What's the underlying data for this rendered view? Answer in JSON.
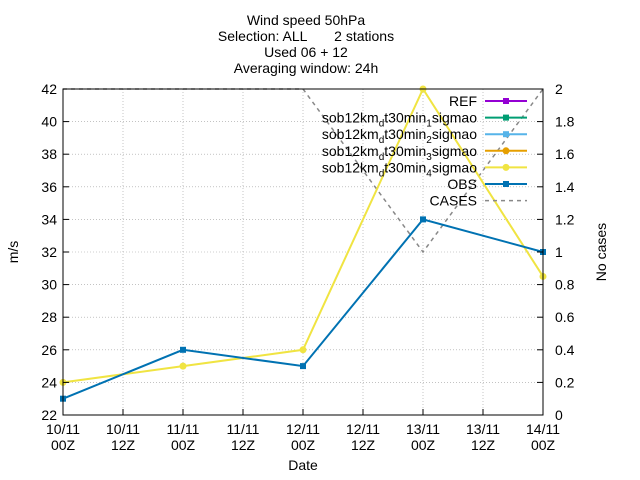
{
  "title_lines": [
    "Wind speed 50hPa",
    "Selection: ALL       2 stations",
    "Used 06 + 12",
    "Averaging window: 24h"
  ],
  "chart_data": {
    "type": "line",
    "xlabel": "Date",
    "ylabel": "m/s",
    "y2label": "No cases",
    "ylim": [
      22,
      42
    ],
    "y2lim": [
      0,
      2
    ],
    "x_ticks": [
      [
        "10/11",
        "00Z"
      ],
      [
        "10/11",
        "12Z"
      ],
      [
        "11/11",
        "00Z"
      ],
      [
        "11/11",
        "12Z"
      ],
      [
        "12/11",
        "00Z"
      ],
      [
        "12/11",
        "12Z"
      ],
      [
        "13/11",
        "00Z"
      ],
      [
        "13/11",
        "12Z"
      ],
      [
        "14/11",
        "00Z"
      ]
    ],
    "y_ticks": [
      22,
      24,
      26,
      28,
      30,
      32,
      34,
      36,
      38,
      40,
      42
    ],
    "y2_ticks": [
      "0",
      "0.2",
      "0.4",
      "0.6",
      "0.8",
      "1",
      "1.2",
      "1.4",
      "1.6",
      "1.8",
      "2"
    ],
    "grid": true,
    "legend_position": "top-right",
    "series": [
      {
        "name": "REF",
        "legend_sub": "",
        "legend_tail": "",
        "color": "#9400d3",
        "dash": "",
        "marker": "square",
        "axis": "y",
        "x": [],
        "values": []
      },
      {
        "name": "sob12km",
        "legend_sub": "d",
        "legend_tail": "t30min",
        "legend_sub2": "1",
        "legend_end": "sigmao",
        "color": "#009e73",
        "dash": "",
        "marker": "square",
        "axis": "y",
        "x": [],
        "values": []
      },
      {
        "name": "sob12km",
        "legend_sub": "d",
        "legend_tail": "t30min",
        "legend_sub2": "2",
        "legend_end": "sigmao",
        "color": "#56b4e9",
        "dash": "",
        "marker": "square",
        "axis": "y",
        "x": [],
        "values": []
      },
      {
        "name": "sob12km",
        "legend_sub": "d",
        "legend_tail": "t30min",
        "legend_sub2": "3",
        "legend_end": "sigmao",
        "color": "#e69f00",
        "dash": "",
        "marker": "circle",
        "axis": "y",
        "x": [],
        "values": []
      },
      {
        "name": "sob12km",
        "legend_sub": "d",
        "legend_tail": "t30min",
        "legend_sub2": "4",
        "legend_end": "sigmao",
        "color": "#f0e442",
        "dash": "",
        "marker": "circle",
        "axis": "y",
        "x": [
          0,
          2,
          4,
          6,
          8
        ],
        "values": [
          24,
          25,
          26,
          42,
          30.5
        ]
      },
      {
        "name": "OBS",
        "legend_sub": "",
        "legend_tail": "",
        "color": "#0072b2",
        "dash": "",
        "marker": "square",
        "axis": "y",
        "x": [
          0,
          2,
          4,
          6,
          8
        ],
        "values": [
          23,
          26,
          25,
          34,
          32
        ]
      },
      {
        "name": "CASES",
        "legend_sub": "",
        "legend_tail": "",
        "color": "#888888",
        "dash": "4,4",
        "marker": "none",
        "axis": "y2",
        "x": [
          0,
          2,
          4,
          6,
          8
        ],
        "values": [
          2,
          2,
          2,
          1,
          2
        ]
      }
    ]
  }
}
